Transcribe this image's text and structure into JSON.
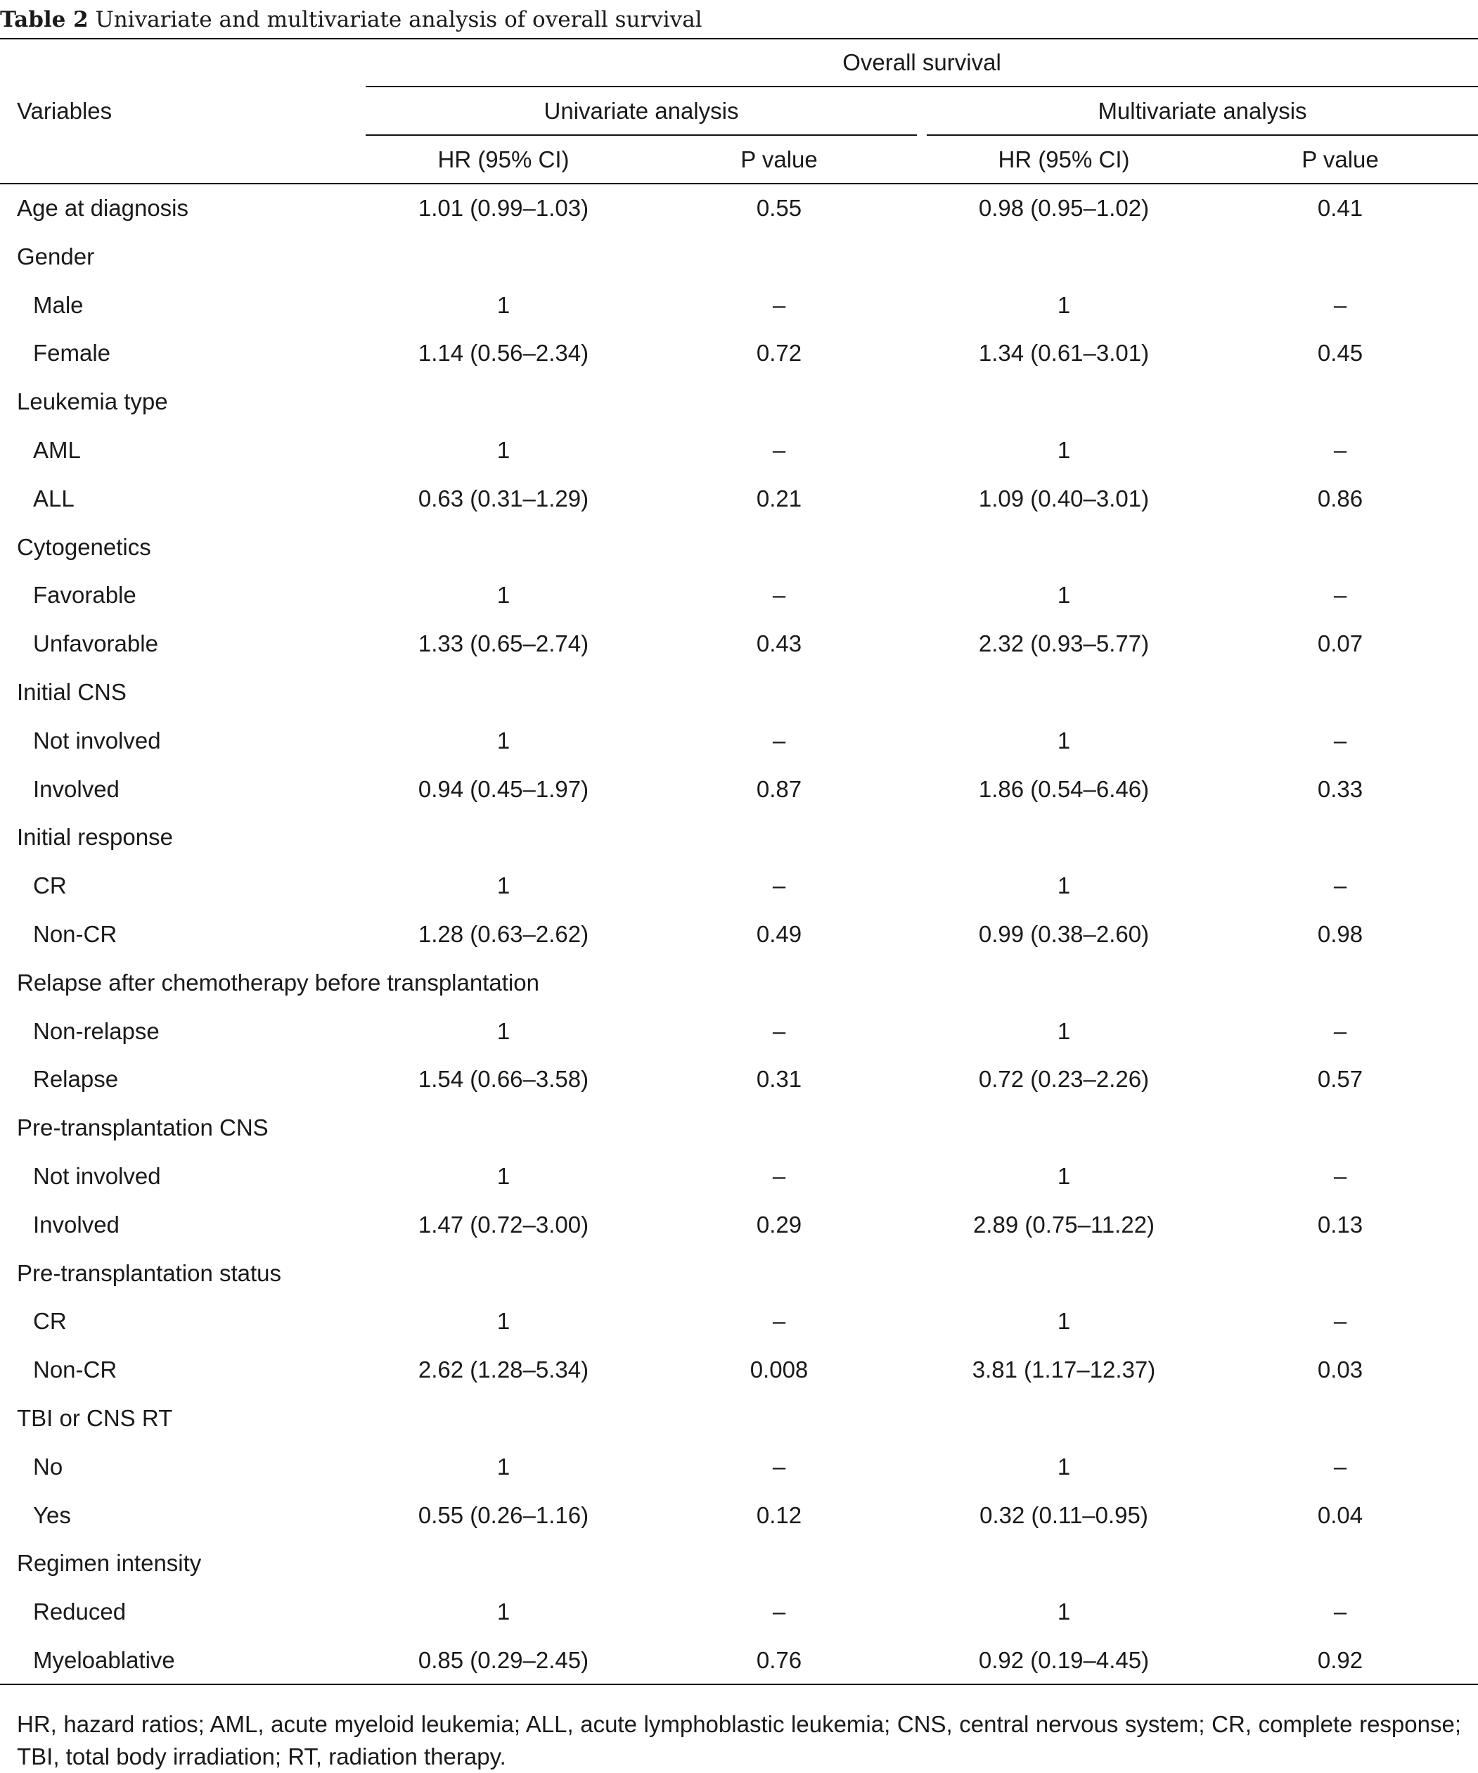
{
  "caption": {
    "number": "Table 2",
    "title": "Univariate and multivariate analysis of overall survival"
  },
  "header": {
    "variables": "Variables",
    "overall_survival": "Overall survival",
    "univariate": "Univariate analysis",
    "multivariate": "Multivariate analysis",
    "hr_uni": "HR (95% CI)",
    "p_uni": "P value",
    "hr_multi": "HR (95% CI)",
    "p_multi": "P value"
  },
  "rows": [
    {
      "label": "Age at diagnosis",
      "indent": false,
      "hr_uni": "1.01 (0.99–1.03)",
      "p_uni": "0.55",
      "hr_multi": "0.98 (0.95–1.02)",
      "p_multi": "0.41"
    },
    {
      "label": "Gender",
      "indent": false,
      "hr_uni": "",
      "p_uni": "",
      "hr_multi": "",
      "p_multi": ""
    },
    {
      "label": "Male",
      "indent": true,
      "hr_uni": "1",
      "p_uni": "–",
      "hr_multi": "1",
      "p_multi": "–"
    },
    {
      "label": "Female",
      "indent": true,
      "hr_uni": "1.14 (0.56–2.34)",
      "p_uni": "0.72",
      "hr_multi": "1.34 (0.61–3.01)",
      "p_multi": "0.45"
    },
    {
      "label": "Leukemia type",
      "indent": false,
      "hr_uni": "",
      "p_uni": "",
      "hr_multi": "",
      "p_multi": ""
    },
    {
      "label": "AML",
      "indent": true,
      "hr_uni": "1",
      "p_uni": "–",
      "hr_multi": "1",
      "p_multi": "–"
    },
    {
      "label": "ALL",
      "indent": true,
      "hr_uni": "0.63 (0.31–1.29)",
      "p_uni": "0.21",
      "hr_multi": "1.09 (0.40–3.01)",
      "p_multi": "0.86"
    },
    {
      "label": "Cytogenetics",
      "indent": false,
      "hr_uni": "",
      "p_uni": "",
      "hr_multi": "",
      "p_multi": ""
    },
    {
      "label": "Favorable",
      "indent": true,
      "hr_uni": "1",
      "p_uni": "–",
      "hr_multi": "1",
      "p_multi": "–"
    },
    {
      "label": "Unfavorable",
      "indent": true,
      "hr_uni": "1.33 (0.65–2.74)",
      "p_uni": "0.43",
      "hr_multi": "2.32 (0.93–5.77)",
      "p_multi": "0.07"
    },
    {
      "label": "Initial CNS",
      "indent": false,
      "hr_uni": "",
      "p_uni": "",
      "hr_multi": "",
      "p_multi": ""
    },
    {
      "label": "Not involved",
      "indent": true,
      "hr_uni": "1",
      "p_uni": "–",
      "hr_multi": "1",
      "p_multi": "–"
    },
    {
      "label": "Involved",
      "indent": true,
      "hr_uni": "0.94 (0.45–1.97)",
      "p_uni": "0.87",
      "hr_multi": "1.86 (0.54–6.46)",
      "p_multi": "0.33"
    },
    {
      "label": "Initial response",
      "indent": false,
      "hr_uni": "",
      "p_uni": "",
      "hr_multi": "",
      "p_multi": ""
    },
    {
      "label": "CR",
      "indent": true,
      "hr_uni": "1",
      "p_uni": "–",
      "hr_multi": "1",
      "p_multi": "–"
    },
    {
      "label": "Non-CR",
      "indent": true,
      "hr_uni": "1.28 (0.63–2.62)",
      "p_uni": "0.49",
      "hr_multi": "0.99 (0.38–2.60)",
      "p_multi": "0.98"
    },
    {
      "label": "Relapse after chemotherapy before transplantation",
      "indent": false,
      "hr_uni": "",
      "p_uni": "",
      "hr_multi": "",
      "p_multi": ""
    },
    {
      "label": "Non-relapse",
      "indent": true,
      "hr_uni": "1",
      "p_uni": "–",
      "hr_multi": "1",
      "p_multi": "–"
    },
    {
      "label": "Relapse",
      "indent": true,
      "hr_uni": "1.54 (0.66–3.58)",
      "p_uni": "0.31",
      "hr_multi": "0.72 (0.23–2.26)",
      "p_multi": "0.57"
    },
    {
      "label": "Pre-transplantation CNS",
      "indent": false,
      "hr_uni": "",
      "p_uni": "",
      "hr_multi": "",
      "p_multi": ""
    },
    {
      "label": "Not involved",
      "indent": true,
      "hr_uni": "1",
      "p_uni": "–",
      "hr_multi": "1",
      "p_multi": "–"
    },
    {
      "label": "Involved",
      "indent": true,
      "hr_uni": "1.47 (0.72–3.00)",
      "p_uni": "0.29",
      "hr_multi": "2.89 (0.75–11.22)",
      "p_multi": "0.13"
    },
    {
      "label": "Pre-transplantation status",
      "indent": false,
      "hr_uni": "",
      "p_uni": "",
      "hr_multi": "",
      "p_multi": ""
    },
    {
      "label": "CR",
      "indent": true,
      "hr_uni": "1",
      "p_uni": "–",
      "hr_multi": "1",
      "p_multi": "–"
    },
    {
      "label": "Non-CR",
      "indent": true,
      "hr_uni": "2.62 (1.28–5.34)",
      "p_uni": "0.008",
      "hr_multi": "3.81 (1.17–12.37)",
      "p_multi": "0.03"
    },
    {
      "label": "TBI or CNS RT",
      "indent": false,
      "hr_uni": "",
      "p_uni": "",
      "hr_multi": "",
      "p_multi": ""
    },
    {
      "label": "No",
      "indent": true,
      "hr_uni": "1",
      "p_uni": "–",
      "hr_multi": "1",
      "p_multi": "–"
    },
    {
      "label": "Yes",
      "indent": true,
      "hr_uni": "0.55 (0.26–1.16)",
      "p_uni": "0.12",
      "hr_multi": "0.32 (0.11–0.95)",
      "p_multi": "0.04"
    },
    {
      "label": "Regimen intensity",
      "indent": false,
      "hr_uni": "",
      "p_uni": "",
      "hr_multi": "",
      "p_multi": ""
    },
    {
      "label": "Reduced",
      "indent": true,
      "hr_uni": "1",
      "p_uni": "–",
      "hr_multi": "1",
      "p_multi": "–"
    },
    {
      "label": "Myeloablative",
      "indent": true,
      "hr_uni": "0.85 (0.29–2.45)",
      "p_uni": "0.76",
      "hr_multi": "0.92 (0.19–4.45)",
      "p_multi": "0.92"
    }
  ],
  "footnote": "HR, hazard ratios; AML, acute myeloid leukemia; ALL, acute lymphoblastic leukemia; CNS, central nervous system; CR, complete response; TBI, total body irradiation; RT, radiation therapy."
}
